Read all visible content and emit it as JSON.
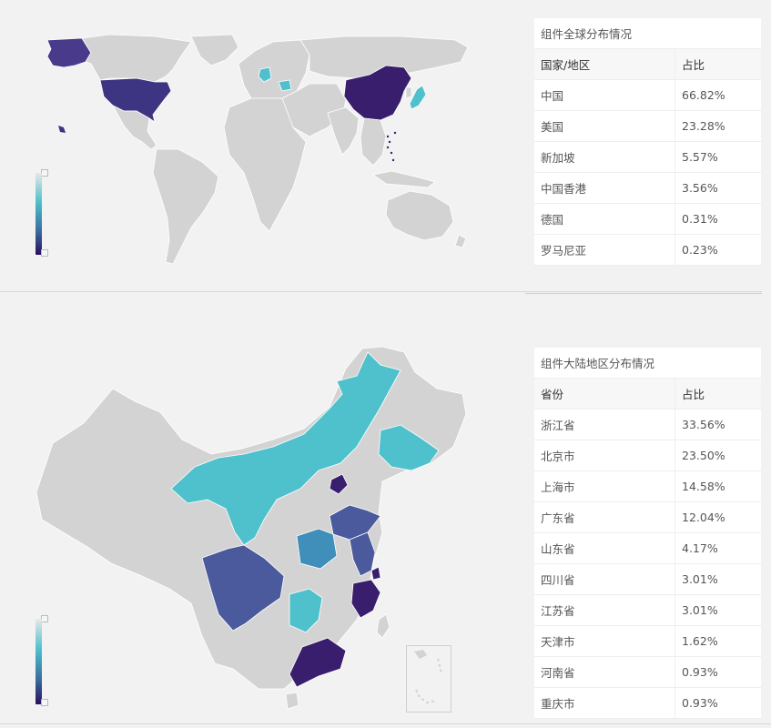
{
  "global": {
    "title": "组件全球分布情况",
    "headers": [
      "国家/地区",
      "占比"
    ],
    "rows": [
      {
        "name": "中国",
        "value": "66.82%"
      },
      {
        "name": "美国",
        "value": "23.28%"
      },
      {
        "name": "新加坡",
        "value": "5.57%"
      },
      {
        "name": "中国香港",
        "value": "3.56%"
      },
      {
        "name": "德国",
        "value": "0.31%"
      },
      {
        "name": "罗马尼亚",
        "value": "0.23%"
      }
    ]
  },
  "mainland": {
    "title": "组件大陆地区分布情况",
    "headers": [
      "省份",
      "占比"
    ],
    "rows": [
      {
        "name": "浙江省",
        "value": "33.56%"
      },
      {
        "name": "北京市",
        "value": "23.50%"
      },
      {
        "name": "上海市",
        "value": "14.58%"
      },
      {
        "name": "广东省",
        "value": "12.04%"
      },
      {
        "name": "山东省",
        "value": "4.17%"
      },
      {
        "name": "四川省",
        "value": "3.01%"
      },
      {
        "name": "江苏省",
        "value": "3.01%"
      },
      {
        "name": "天津市",
        "value": "1.62%"
      },
      {
        "name": "河南省",
        "value": "0.93%"
      },
      {
        "name": "重庆市",
        "value": "0.93%"
      }
    ]
  },
  "colors": {
    "highest": "#3a1e6e",
    "high": "#4a5a9c",
    "mid": "#3f8fba",
    "low": "#4fc1cc",
    "none": "#d3d3d3"
  }
}
